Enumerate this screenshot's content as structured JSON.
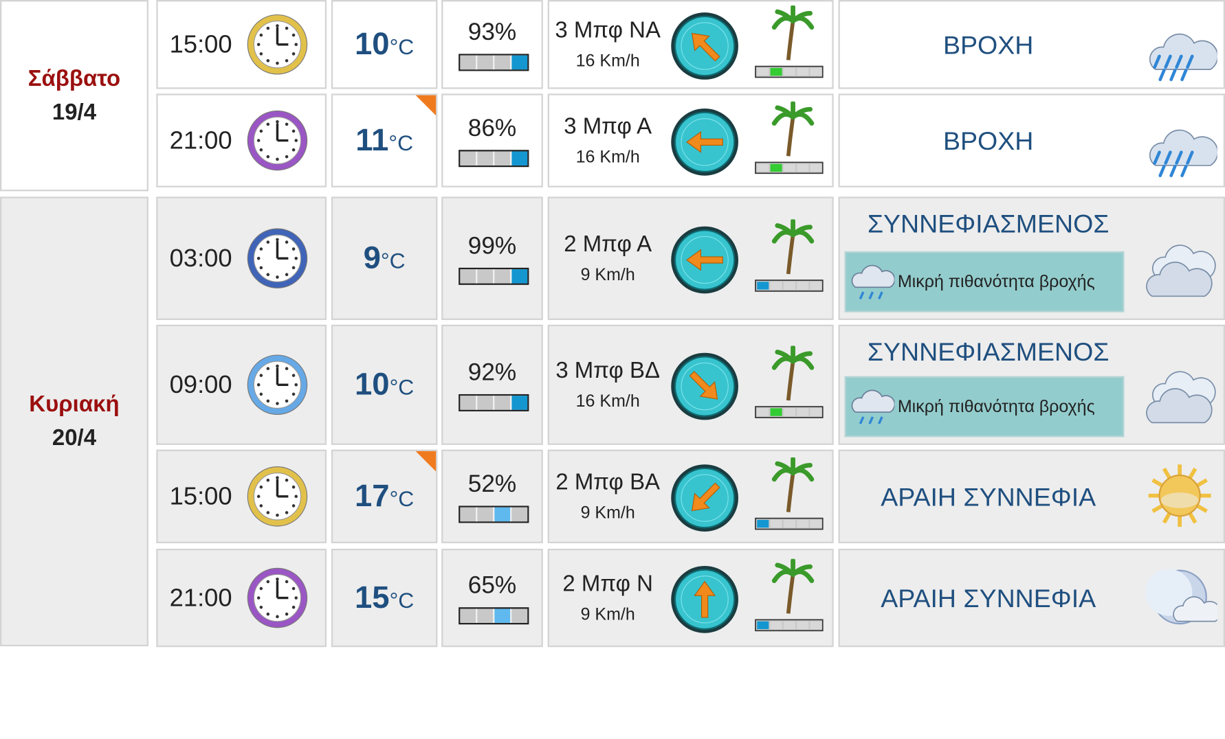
{
  "days": [
    {
      "name": "Σάββατο",
      "date": "19/4",
      "rows": [
        {
          "time": "15:00",
          "clock_color": "#e2c14b",
          "temp": "10",
          "unit": "°C",
          "corner": false,
          "humidity": "93%",
          "hum_level": 4,
          "hum_style": "on",
          "beaufort": "3 Μπφ ΝΑ",
          "kmh": "16 Km/h",
          "wind_dir": "NA",
          "wind_level": 2,
          "condition": "ΒΡΟΧΗ",
          "rain_note": "",
          "icon": "rain-icon"
        },
        {
          "time": "21:00",
          "clock_color": "#9a56c4",
          "temp": "11",
          "unit": "°C",
          "corner": true,
          "humidity": "86%",
          "hum_level": 4,
          "hum_style": "on",
          "beaufort": "3 Μπφ Α",
          "kmh": "16 Km/h",
          "wind_dir": "A",
          "wind_level": 2,
          "condition": "ΒΡΟΧΗ",
          "rain_note": "",
          "icon": "rain-icon"
        }
      ]
    },
    {
      "name": "Κυριακή",
      "date": "20/4",
      "rows": [
        {
          "time": "03:00",
          "clock_color": "#3f64b8",
          "temp": "9",
          "unit": "°C",
          "corner": false,
          "humidity": "99%",
          "hum_level": 4,
          "hum_style": "on",
          "beaufort": "2 Μπφ Α",
          "kmh": "9 Km/h",
          "wind_dir": "A",
          "wind_level": 1,
          "condition": "ΣΥΝΝΕΦΙΑΣΜΕΝΟΣ",
          "rain_note": "Μικρή πιθανότητα βροχής",
          "icon": "cloud-icon"
        },
        {
          "time": "09:00",
          "clock_color": "#66a9e6",
          "temp": "10",
          "unit": "°C",
          "corner": false,
          "humidity": "92%",
          "hum_level": 4,
          "hum_style": "on",
          "beaufort": "3 Μπφ ΒΔ",
          "kmh": "16 Km/h",
          "wind_dir": "BD",
          "wind_level": 2,
          "condition": "ΣΥΝΝΕΦΙΑΣΜΕΝΟΣ",
          "rain_note": "Μικρή πιθανότητα βροχής",
          "icon": "cloud-icon"
        },
        {
          "time": "15:00",
          "clock_color": "#e2c14b",
          "temp": "17",
          "unit": "°C",
          "corner": true,
          "humidity": "52%",
          "hum_level": 3,
          "hum_style": "lit",
          "beaufort": "2 Μπφ ΒΑ",
          "kmh": "9 Km/h",
          "wind_dir": "BA",
          "wind_level": 1,
          "condition": "ΑΡΑΙΗ ΣΥΝΝΕΦΙΑ",
          "rain_note": "",
          "icon": "sun-cloud-icon"
        },
        {
          "time": "21:00",
          "clock_color": "#9a56c4",
          "temp": "15",
          "unit": "°C",
          "corner": false,
          "humidity": "65%",
          "hum_level": 3,
          "hum_style": "lit",
          "beaufort": "2 Μπφ Ν",
          "kmh": "9 Km/h",
          "wind_dir": "N",
          "wind_level": 1,
          "condition": "ΑΡΑΙΗ ΣΥΝΝΕΦΙΑ",
          "rain_note": "",
          "icon": "moon-cloud-icon"
        }
      ]
    }
  ],
  "colors": {
    "day_name": "#9b0f0f",
    "temp": "#1f4f7f",
    "bar_on": "#1497d1",
    "bar_lit": "#5fb9ee",
    "wind_on": "#33cc33",
    "wind_on_low": "#1497d1",
    "cell_bg_sat": "#ffffff",
    "cell_bg_sun": "#ededed"
  }
}
